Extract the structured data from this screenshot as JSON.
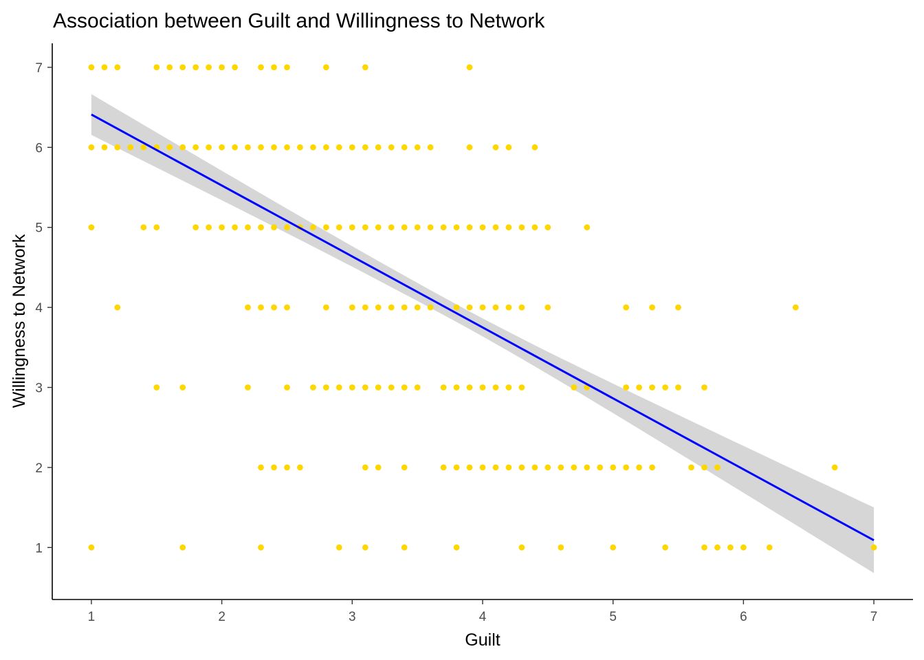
{
  "chart_data": {
    "type": "scatter",
    "title": "Association between Guilt and Willingness to Network",
    "xlabel": "Guilt",
    "ylabel": "Willingness to Network",
    "xlim": [
      0.7,
      7.3
    ],
    "ylim": [
      0.35,
      7.3
    ],
    "xticks": [
      1,
      2,
      3,
      4,
      5,
      6,
      7
    ],
    "yticks": [
      1,
      2,
      3,
      4,
      5,
      6,
      7
    ],
    "grid": false,
    "point_color": "#FFD700",
    "line_color": "#0000FF",
    "ribbon_color": "#D4D4D4",
    "points_by_y": {
      "7": [
        1.0,
        1.1,
        1.2,
        1.5,
        1.6,
        1.7,
        1.8,
        1.9,
        2.0,
        2.1,
        2.3,
        2.4,
        2.5,
        2.8,
        3.1,
        3.9
      ],
      "6": [
        1.0,
        1.1,
        1.2,
        1.3,
        1.4,
        1.5,
        1.6,
        1.7,
        1.8,
        1.9,
        2.0,
        2.1,
        2.2,
        2.3,
        2.4,
        2.5,
        2.6,
        2.7,
        2.8,
        2.9,
        3.0,
        3.1,
        3.2,
        3.3,
        3.4,
        3.5,
        3.6,
        3.9,
        4.1,
        4.2,
        4.4
      ],
      "5": [
        1.0,
        1.4,
        1.5,
        1.8,
        1.9,
        2.0,
        2.1,
        2.2,
        2.3,
        2.4,
        2.5,
        2.6,
        2.7,
        2.8,
        2.9,
        3.0,
        3.1,
        3.2,
        3.3,
        3.4,
        3.5,
        3.6,
        3.7,
        3.8,
        3.9,
        4.0,
        4.1,
        4.2,
        4.3,
        4.4,
        4.5,
        4.8
      ],
      "4": [
        1.2,
        2.2,
        2.3,
        2.4,
        2.5,
        2.8,
        3.0,
        3.1,
        3.2,
        3.3,
        3.4,
        3.5,
        3.6,
        3.8,
        3.9,
        4.0,
        4.1,
        4.2,
        4.3,
        4.5,
        5.1,
        5.3,
        5.5,
        6.4
      ],
      "3": [
        1.5,
        1.7,
        2.2,
        2.5,
        2.7,
        2.8,
        2.9,
        3.0,
        3.1,
        3.2,
        3.3,
        3.4,
        3.5,
        3.7,
        3.8,
        3.9,
        4.0,
        4.1,
        4.2,
        4.3,
        4.7,
        4.8,
        5.1,
        5.2,
        5.3,
        5.4,
        5.5,
        5.7
      ],
      "2": [
        2.3,
        2.4,
        2.5,
        2.6,
        3.1,
        3.2,
        3.4,
        3.7,
        3.8,
        3.9,
        4.0,
        4.1,
        4.2,
        4.3,
        4.4,
        4.5,
        4.6,
        4.7,
        4.8,
        4.9,
        5.0,
        5.1,
        5.2,
        5.3,
        5.6,
        5.7,
        5.8,
        6.7
      ],
      "1": [
        1.0,
        1.7,
        2.3,
        2.9,
        3.1,
        3.4,
        3.8,
        4.3,
        4.6,
        5.0,
        5.4,
        5.7,
        5.8,
        5.9,
        6.0,
        6.2,
        7.0
      ]
    },
    "regression": {
      "x": [
        1,
        7
      ],
      "y": [
        6.41,
        1.09
      ],
      "ci_lower": [
        6.16,
        0.68
      ],
      "ci_upper": [
        6.67,
        1.5
      ]
    }
  }
}
